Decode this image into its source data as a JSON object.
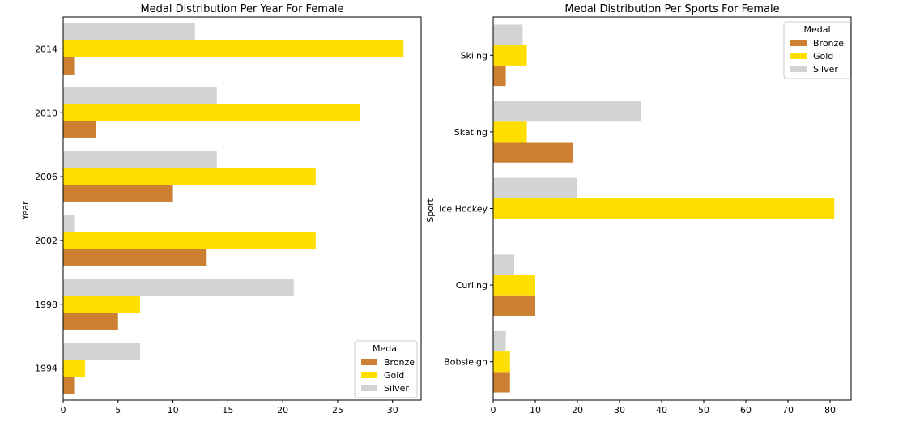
{
  "colors": {
    "Bronze": "#cd7f32",
    "Gold": "#ffdf00",
    "Silver": "#d3d3d3"
  },
  "chart_data": [
    {
      "type": "bar",
      "orientation": "horizontal",
      "title": "Medal Distribution Per Year For Female",
      "xlabel": "",
      "ylabel": "Year",
      "categories": [
        "1994",
        "1998",
        "2002",
        "2006",
        "2010",
        "2014"
      ],
      "series": [
        {
          "name": "Bronze",
          "values": [
            1,
            5,
            13,
            10,
            3,
            1
          ]
        },
        {
          "name": "Gold",
          "values": [
            2,
            7,
            23,
            23,
            27,
            31
          ]
        },
        {
          "name": "Silver",
          "values": [
            7,
            21,
            1,
            14,
            14,
            12
          ]
        }
      ],
      "xlim": [
        0,
        32.6
      ],
      "xticks": [
        0,
        5,
        10,
        15,
        20,
        25,
        30
      ],
      "grid": false,
      "legend": {
        "title": "Medal",
        "position": "lower-right"
      }
    },
    {
      "type": "bar",
      "orientation": "horizontal",
      "title": "Medal Distribution Per Sports For Female",
      "xlabel": "",
      "ylabel": "Sport",
      "categories": [
        "Bobsleigh",
        "Curling",
        "Ice Hockey",
        "Skating",
        "Skiing"
      ],
      "series": [
        {
          "name": "Bronze",
          "values": [
            4,
            10,
            0,
            19,
            3
          ]
        },
        {
          "name": "Gold",
          "values": [
            4,
            10,
            81,
            8,
            8
          ]
        },
        {
          "name": "Silver",
          "values": [
            3,
            5,
            20,
            35,
            7
          ]
        }
      ],
      "xlim": [
        0,
        85
      ],
      "xticks": [
        0,
        10,
        20,
        30,
        40,
        50,
        60,
        70,
        80
      ],
      "grid": false,
      "legend": {
        "title": "Medal",
        "position": "upper-right"
      }
    }
  ]
}
